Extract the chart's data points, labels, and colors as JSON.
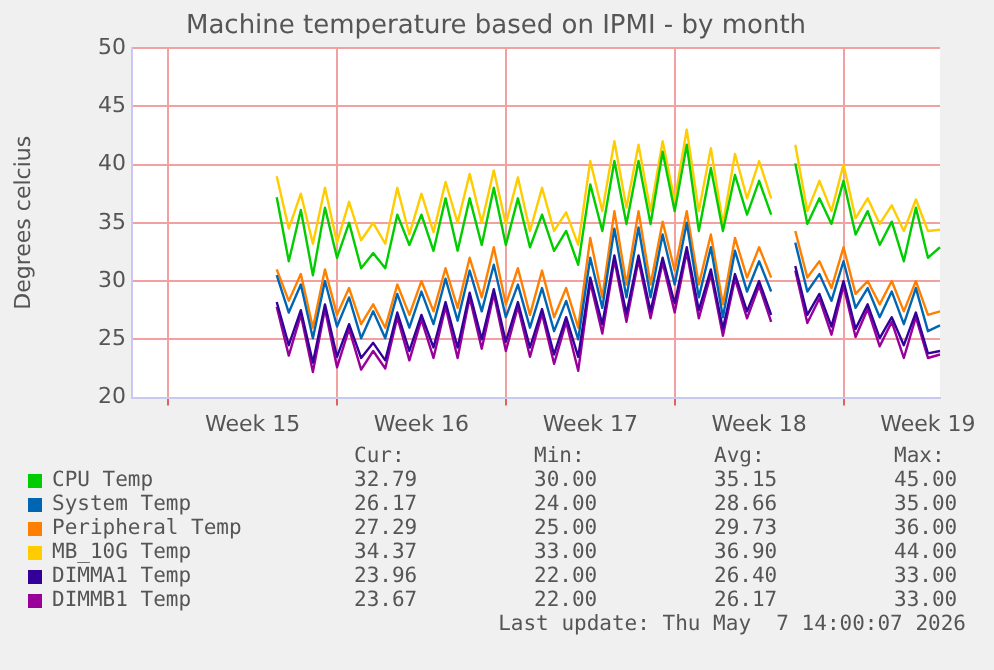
{
  "chart_data": {
    "type": "line",
    "title": "Machine temperature based on IPMI - by month",
    "ylabel": "Degrees celcius",
    "categories": [
      null,
      null,
      null,
      null,
      null,
      null,
      null,
      null,
      null,
      null,
      "Week 15",
      null,
      null,
      null,
      null,
      null,
      null,
      null,
      null,
      null,
      null,
      null,
      null,
      null,
      "Week 16",
      null,
      null,
      null,
      null,
      null,
      null,
      null,
      null,
      null,
      null,
      null,
      null,
      null,
      "Week 17",
      null,
      null,
      null,
      null,
      null,
      null,
      null,
      null,
      null,
      null,
      null,
      null,
      null,
      "Week 18",
      null,
      null,
      null,
      null,
      null,
      null,
      null,
      null,
      null,
      null,
      null,
      null,
      null,
      "Week 19",
      null
    ],
    "series": [
      {
        "name": "CPU Temp",
        "color": "#00cc00",
        "values": [
          null,
          null,
          null,
          null,
          null,
          null,
          null,
          null,
          null,
          null,
          null,
          null,
          37.2,
          31.7,
          36.1,
          30.5,
          36.3,
          32,
          35,
          31.1,
          32.4,
          31.1,
          35.7,
          33.1,
          35.7,
          32.6,
          37.1,
          32.6,
          37.1,
          33.1,
          38,
          33.1,
          37.1,
          32.9,
          35.7,
          32.6,
          34.3,
          31.4,
          38.3,
          34.3,
          40.3,
          34.9,
          40.3,
          34.9,
          41.1,
          36,
          41.7,
          34.3,
          39.7,
          34.3,
          39.1,
          35.7,
          38.6,
          35.7,
          null,
          40.1,
          34.9,
          37.1,
          34.9,
          38.6,
          34,
          36,
          33.1,
          35.1,
          31.7,
          36.3,
          32,
          32.9
        ]
      },
      {
        "name": "System Temp",
        "color": "#0066b3",
        "values": [
          null,
          null,
          null,
          null,
          null,
          null,
          null,
          null,
          null,
          null,
          null,
          null,
          30.5,
          27.3,
          29.7,
          25.1,
          30,
          26.1,
          28.6,
          25.1,
          27.4,
          25.1,
          28.9,
          26,
          29.1,
          26.3,
          30.2,
          26.6,
          30.9,
          27.4,
          31.4,
          26.9,
          29.7,
          26,
          29.4,
          25.7,
          28.3,
          25,
          32,
          27.7,
          34.5,
          28.6,
          34.6,
          28.6,
          34,
          29.7,
          35,
          28.6,
          32.9,
          26.9,
          32.6,
          29.1,
          31.7,
          29.1,
          null,
          33.3,
          29.1,
          30.6,
          28.3,
          31.7,
          27.7,
          29.4,
          26.9,
          29.1,
          26.3,
          29.4,
          25.7,
          26.2
        ]
      },
      {
        "name": "Peripheral Temp",
        "color": "#ff8000",
        "values": [
          null,
          null,
          null,
          null,
          null,
          null,
          null,
          null,
          null,
          null,
          null,
          null,
          31,
          28.3,
          30.6,
          26,
          31,
          27.1,
          29.4,
          26.3,
          28,
          26,
          29.7,
          27.1,
          30,
          27.4,
          31.1,
          27.7,
          32,
          28.6,
          32.9,
          28,
          31.1,
          27.1,
          30.9,
          26.9,
          29.4,
          26,
          33.7,
          28.6,
          36,
          29.7,
          36,
          29.7,
          35.1,
          30.9,
          36,
          29.7,
          34,
          28,
          33.7,
          30.3,
          32.9,
          30.3,
          null,
          34.3,
          30.3,
          31.7,
          29.4,
          32.9,
          28.9,
          30,
          28,
          30,
          27.4,
          30,
          27.1,
          27.4
        ]
      },
      {
        "name": "MB_10G Temp",
        "color": "#ffcc00",
        "values": [
          null,
          null,
          null,
          null,
          null,
          null,
          null,
          null,
          null,
          null,
          null,
          null,
          39,
          34.5,
          37.5,
          33.2,
          38,
          33.3,
          36.8,
          33.5,
          35,
          33.2,
          38,
          34,
          37.5,
          34.2,
          38.5,
          35,
          39.2,
          35,
          39.5,
          34.9,
          38.9,
          34.3,
          38,
          34.3,
          35.9,
          33.1,
          40.3,
          36,
          42,
          36.3,
          41.7,
          36,
          42,
          36.9,
          43,
          36,
          41.4,
          34.9,
          40.9,
          37.1,
          40.3,
          37.1,
          null,
          41.7,
          36,
          38.6,
          36,
          40,
          35.4,
          37.1,
          34.9,
          36.5,
          34.3,
          37,
          34.3,
          34.4
        ]
      },
      {
        "name": "DIMMA1 Temp",
        "color": "#330099",
        "values": [
          null,
          null,
          null,
          null,
          null,
          null,
          null,
          null,
          null,
          null,
          null,
          null,
          28.2,
          24.5,
          27.5,
          23,
          28,
          23.5,
          26.3,
          23.4,
          24.7,
          23.2,
          27.3,
          24,
          27.1,
          24.3,
          28.2,
          24.3,
          29,
          25,
          29.3,
          24.8,
          28.2,
          24.3,
          27.6,
          23.7,
          26.9,
          23.5,
          30.3,
          26.3,
          32.2,
          27.2,
          32.2,
          27.4,
          32,
          28.1,
          32.9,
          27.5,
          31,
          25.9,
          30.6,
          27.4,
          30,
          27.1,
          null,
          31.3,
          27.1,
          28.9,
          26.1,
          30,
          25.9,
          28,
          25.1,
          26.9,
          24.5,
          27.3,
          23.8,
          24
        ]
      },
      {
        "name": "DIMMB1 Temp",
        "color": "#990099",
        "values": [
          null,
          null,
          null,
          null,
          null,
          null,
          null,
          null,
          null,
          null,
          null,
          null,
          27.8,
          23.6,
          27.1,
          22.2,
          27.6,
          22.6,
          25.9,
          22.4,
          24,
          22.5,
          26.9,
          23.2,
          26.7,
          23.4,
          27.8,
          23.4,
          28.6,
          24.2,
          28.9,
          24,
          27.8,
          23.5,
          27.2,
          22.9,
          26.5,
          22.3,
          29.9,
          25.5,
          31.8,
          26.5,
          31.8,
          26.8,
          31.6,
          27.3,
          32.5,
          26.8,
          30.6,
          25.3,
          30.2,
          26.8,
          29.6,
          26.5,
          null,
          30.9,
          26.4,
          28.5,
          25.4,
          29.6,
          25.2,
          27.6,
          24.4,
          26.5,
          23.4,
          26.9,
          23.4,
          23.7
        ]
      }
    ],
    "ylim": [
      20,
      50
    ],
    "yticks": [
      20,
      25,
      30,
      35,
      40,
      45,
      50
    ],
    "grid": true,
    "legend": "bottom",
    "marker": "none",
    "line_style": "solid",
    "annotations": [
      "Cur:",
      "Min:",
      "Avg:",
      "Max:",
      "32.79",
      "30.00",
      "35.15",
      "45.00",
      "26.17",
      "24.00",
      "28.66",
      "35.00",
      "27.29",
      "25.00",
      "29.73",
      "36.00",
      "34.37",
      "33.00",
      "36.90",
      "44.00",
      "23.96",
      "22.00",
      "26.40",
      "33.00",
      "23.67",
      "22.00",
      "26.17",
      "33.00",
      "Last update: Thu May  7 14:00:07 2026"
    ]
  }
}
